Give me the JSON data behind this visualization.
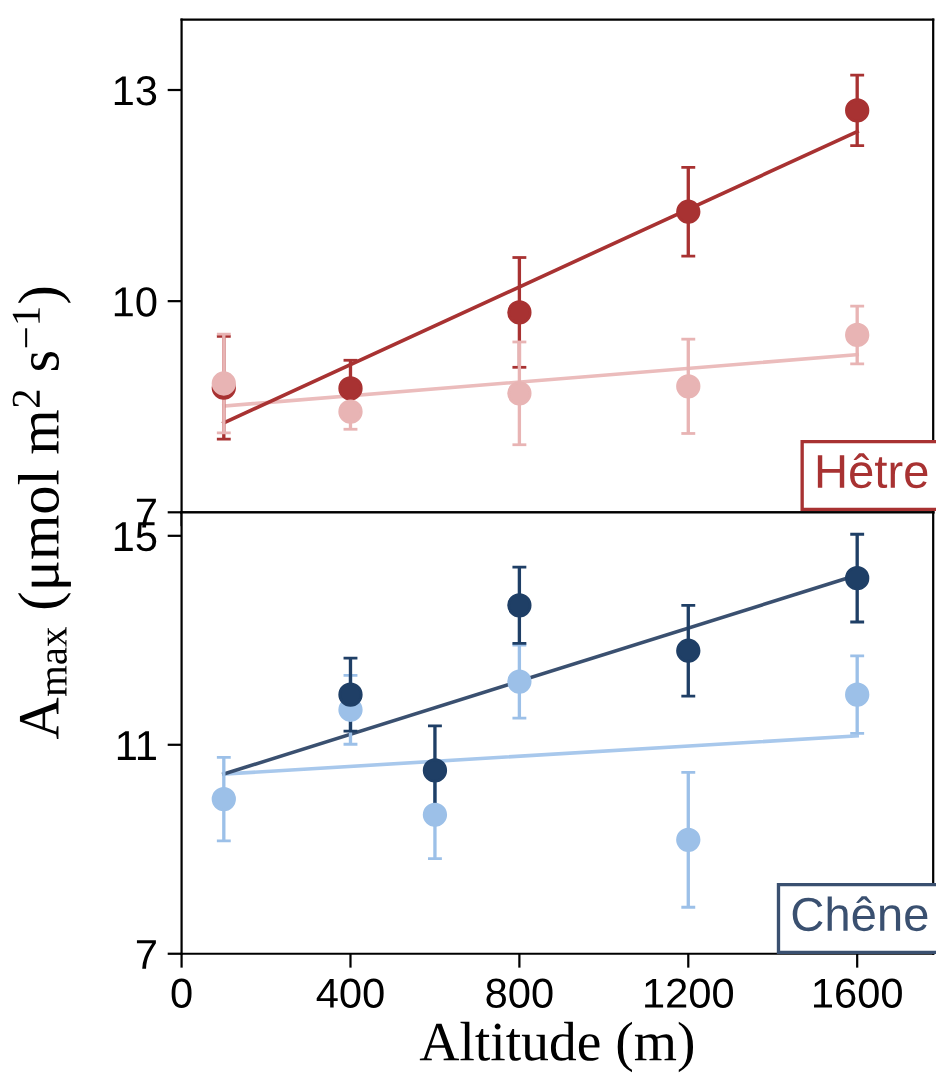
{
  "chart_data": [
    {
      "type": "scatter",
      "title": "Hêtre",
      "ylabel": "A$_{max}$ (μmol m$^{2}$ s$^{−1}$)",
      "grid": false,
      "tick_labels": "y",
      "xlim": [
        0,
        1780
      ],
      "xticks": [
        0,
        400,
        800,
        1200,
        1600
      ],
      "ylim": [
        7,
        14
      ],
      "yticks": [
        7,
        10,
        13
      ],
      "series": [
        {
          "marker": "circle",
          "color": "#a83232",
          "x": [
            100,
            400,
            800,
            1200,
            1600
          ],
          "values": [
            8.77,
            8.76,
            9.84,
            11.27,
            12.71
          ],
          "errors": [
            0.73,
            0.4,
            0.78,
            0.63,
            0.5
          ]
        },
        {
          "marker": "circle",
          "color": "#e8b4b4",
          "x": [
            100,
            400,
            800,
            1200,
            1600
          ],
          "values": [
            8.83,
            8.43,
            8.69,
            8.79,
            9.52
          ],
          "errors": [
            0.7,
            0.25,
            0.73,
            0.67,
            0.41
          ]
        },
        {
          "type": "line",
          "color": "#ebbcbc",
          "x": [
            100,
            1600
          ],
          "values": [
            8.51,
            9.24
          ]
        },
        {
          "type": "line",
          "color": "#a83232",
          "x": [
            100,
            1600
          ],
          "values": [
            8.27,
            12.41
          ]
        }
      ]
    },
    {
      "type": "scatter",
      "title": "Chêne",
      "xlabel": "Altitude (m)",
      "grid": false,
      "xlim": [
        0,
        1780
      ],
      "xticks": [
        0,
        400,
        800,
        1200,
        1600
      ],
      "ylim": [
        7,
        15.45
      ],
      "yticks": [
        7,
        11,
        15
      ],
      "series": [
        {
          "marker": "circle",
          "color": "#9cc0e8",
          "x": [
            100,
            400,
            600,
            800,
            1200,
            1600
          ],
          "values": [
            9.96,
            11.67,
            9.66,
            12.21,
            9.18,
            11.96
          ],
          "errors": [
            0.8,
            0.66,
            0.84,
            0.7,
            1.29,
            0.74
          ]
        },
        {
          "marker": "circle",
          "color": "#1f3f66",
          "x": [
            400,
            600,
            800,
            1200,
            1600
          ],
          "values": [
            11.96,
            10.51,
            13.67,
            12.8,
            14.19
          ],
          "errors": [
            0.7,
            0.85,
            0.73,
            0.87,
            0.84
          ]
        },
        {
          "type": "line",
          "color": "#a8c8ec",
          "x": [
            100,
            1600
          ],
          "values": [
            10.44,
            11.17
          ]
        },
        {
          "type": "line",
          "color": "#3a5070",
          "x": [
            100,
            1600
          ],
          "values": [
            10.44,
            14.25
          ]
        }
      ]
    }
  ]
}
